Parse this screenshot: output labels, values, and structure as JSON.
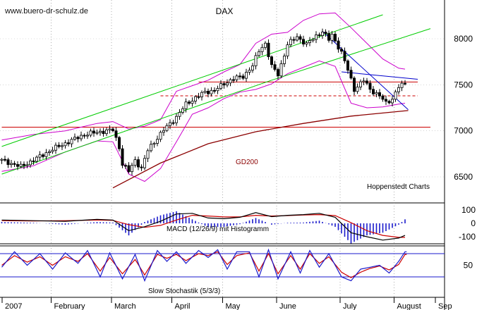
{
  "watermark": "www.buero-dr-schulz.de",
  "chart_data": [
    {
      "type": "candlestick",
      "title": "DAX",
      "source_label": "Hoppenstedt Charts",
      "ylim": [
        6300,
        8300
      ],
      "y_ticks": [
        6500,
        7000,
        7500,
        8000
      ],
      "x_labels": [
        "2007",
        "February",
        "March",
        "April",
        "May",
        "June",
        "July",
        "August",
        "Sep"
      ],
      "close_path": [
        [
          0,
          6680
        ],
        [
          6,
          6610
        ],
        [
          12,
          6720
        ],
        [
          16,
          6800
        ],
        [
          21,
          6880
        ],
        [
          26,
          6960
        ],
        [
          31,
          6990
        ],
        [
          35,
          7010
        ],
        [
          37,
          6820
        ],
        [
          38,
          6640
        ],
        [
          40,
          6560
        ],
        [
          42,
          6680
        ],
        [
          44,
          6590
        ],
        [
          46,
          6790
        ],
        [
          48,
          6880
        ],
        [
          51,
          7010
        ],
        [
          55,
          7150
        ],
        [
          58,
          7290
        ],
        [
          61,
          7360
        ],
        [
          64,
          7420
        ],
        [
          67,
          7440
        ],
        [
          70,
          7510
        ],
        [
          73,
          7570
        ],
        [
          76,
          7590
        ],
        [
          79,
          7710
        ],
        [
          81,
          7870
        ],
        [
          83,
          7950
        ],
        [
          85,
          7700
        ],
        [
          87,
          7610
        ],
        [
          90,
          7940
        ],
        [
          93,
          8020
        ],
        [
          96,
          7940
        ],
        [
          99,
          8030
        ],
        [
          101,
          8080
        ],
        [
          103,
          7990
        ],
        [
          104,
          8040
        ],
        [
          107,
          7850
        ],
        [
          109,
          7660
        ],
        [
          111,
          7450
        ],
        [
          114,
          7550
        ],
        [
          116,
          7450
        ],
        [
          119,
          7380
        ],
        [
          121,
          7300
        ],
        [
          123,
          7350
        ],
        [
          125,
          7480
        ],
        [
          127,
          7510
        ]
      ],
      "lines": [
        {
          "name": "GD200",
          "color": "#8b0000",
          "points": [
            [
              35,
              6380
            ],
            [
              50,
              6650
            ],
            [
              65,
              6860
            ],
            [
              80,
              6990
            ],
            [
              95,
              7080
            ],
            [
              110,
              7160
            ],
            [
              128,
              7220
            ]
          ]
        },
        {
          "name": "",
          "color": "#00cc00",
          "points": [
            [
              0,
              6830
            ],
            [
              120,
              8260
            ]
          ]
        },
        {
          "name": "",
          "color": "#00cc00",
          "points": [
            [
              0,
              6530
            ],
            [
              85,
              7550
            ],
            [
              135,
              8110
            ]
          ]
        },
        {
          "name": "",
          "color": "#0000cc",
          "points": [
            [
              101,
              8080
            ],
            [
              128,
              7230
            ]
          ]
        },
        {
          "name": "",
          "color": "#0000cc",
          "points": [
            [
              107,
              7640
            ],
            [
              131,
              7560
            ]
          ]
        }
      ],
      "horizontal_lines": [
        {
          "value": 7530,
          "color": "#cc0000",
          "style": "solid",
          "from": 62,
          "to": 131
        },
        {
          "value": 7380,
          "color": "#cc0000",
          "style": "dashed",
          "from": 50,
          "to": 131
        },
        {
          "value": 7040,
          "color": "#cc0000",
          "style": "solid",
          "from": 0,
          "to": 135
        }
      ],
      "bollinger": {
        "upper": [
          [
            0,
            6900
          ],
          [
            10,
            6960
          ],
          [
            20,
            7000
          ],
          [
            30,
            7080
          ],
          [
            35,
            7100
          ],
          [
            40,
            7020
          ],
          [
            45,
            7050
          ],
          [
            50,
            7120
          ],
          [
            55,
            7430
          ],
          [
            60,
            7490
          ],
          [
            65,
            7550
          ],
          [
            70,
            7640
          ],
          [
            75,
            7720
          ],
          [
            80,
            7950
          ],
          [
            85,
            8050
          ],
          [
            90,
            8070
          ],
          [
            95,
            8200
          ],
          [
            100,
            8270
          ],
          [
            105,
            8280
          ],
          [
            110,
            8120
          ],
          [
            115,
            7950
          ],
          [
            120,
            7780
          ],
          [
            125,
            7680
          ],
          [
            127,
            7670
          ]
        ],
        "lower": [
          [
            0,
            6560
          ],
          [
            10,
            6620
          ],
          [
            20,
            6770
          ],
          [
            30,
            6890
          ],
          [
            35,
            6880
          ],
          [
            40,
            6530
          ],
          [
            45,
            6450
          ],
          [
            50,
            6590
          ],
          [
            55,
            6880
          ],
          [
            60,
            7180
          ],
          [
            65,
            7250
          ],
          [
            70,
            7350
          ],
          [
            75,
            7420
          ],
          [
            80,
            7450
          ],
          [
            85,
            7510
          ],
          [
            90,
            7620
          ],
          [
            95,
            7690
          ],
          [
            100,
            7760
          ],
          [
            105,
            7700
          ],
          [
            110,
            7300
          ],
          [
            115,
            7250
          ],
          [
            120,
            7260
          ],
          [
            125,
            7290
          ],
          [
            127,
            7300
          ]
        ],
        "color": "#cc00cc"
      }
    },
    {
      "type": "macd",
      "label": "MACD (12/26/9) mit Histogramm",
      "ylim": [
        -150,
        150
      ],
      "y_ticks": [
        100,
        0,
        -100
      ],
      "macd": [
        [
          0,
          25
        ],
        [
          10,
          20
        ],
        [
          20,
          15
        ],
        [
          30,
          30
        ],
        [
          35,
          25
        ],
        [
          40,
          -55
        ],
        [
          45,
          -25
        ],
        [
          50,
          15
        ],
        [
          55,
          70
        ],
        [
          60,
          75
        ],
        [
          65,
          40
        ],
        [
          70,
          35
        ],
        [
          75,
          45
        ],
        [
          80,
          80
        ],
        [
          85,
          50
        ],
        [
          90,
          60
        ],
        [
          95,
          65
        ],
        [
          100,
          75
        ],
        [
          105,
          45
        ],
        [
          110,
          -70
        ],
        [
          115,
          -100
        ],
        [
          120,
          -125
        ],
        [
          125,
          -110
        ],
        [
          127,
          -90
        ]
      ],
      "signal": [
        [
          0,
          20
        ],
        [
          10,
          18
        ],
        [
          20,
          20
        ],
        [
          30,
          25
        ],
        [
          35,
          22
        ],
        [
          40,
          -10
        ],
        [
          45,
          -30
        ],
        [
          50,
          -15
        ],
        [
          55,
          25
        ],
        [
          60,
          60
        ],
        [
          65,
          55
        ],
        [
          70,
          48
        ],
        [
          75,
          48
        ],
        [
          80,
          60
        ],
        [
          85,
          55
        ],
        [
          90,
          58
        ],
        [
          95,
          62
        ],
        [
          100,
          65
        ],
        [
          105,
          58
        ],
        [
          110,
          5
        ],
        [
          115,
          -55
        ],
        [
          120,
          -90
        ],
        [
          125,
          -105
        ],
        [
          127,
          -105
        ]
      ]
    },
    {
      "type": "stochastic",
      "label": "Slow Stochastik (5/3/3)",
      "ylim": [
        0,
        100
      ],
      "y_ticks": [
        50
      ],
      "levels": [
        80,
        20
      ],
      "k": [
        [
          0,
          45
        ],
        [
          4,
          85
        ],
        [
          8,
          50
        ],
        [
          12,
          80
        ],
        [
          16,
          40
        ],
        [
          20,
          82
        ],
        [
          24,
          55
        ],
        [
          27,
          88
        ],
        [
          31,
          20
        ],
        [
          34,
          82
        ],
        [
          38,
          15
        ],
        [
          42,
          78
        ],
        [
          45,
          10
        ],
        [
          49,
          88
        ],
        [
          52,
          60
        ],
        [
          55,
          85
        ],
        [
          58,
          55
        ],
        [
          62,
          88
        ],
        [
          65,
          70
        ],
        [
          68,
          90
        ],
        [
          71,
          40
        ],
        [
          74,
          85
        ],
        [
          78,
          85
        ],
        [
          81,
          20
        ],
        [
          84,
          90
        ],
        [
          87,
          15
        ],
        [
          91,
          85
        ],
        [
          94,
          30
        ],
        [
          97,
          88
        ],
        [
          100,
          45
        ],
        [
          103,
          80
        ],
        [
          107,
          20
        ],
        [
          110,
          10
        ],
        [
          113,
          40
        ],
        [
          116,
          45
        ],
        [
          119,
          50
        ],
        [
          122,
          30
        ],
        [
          125,
          60
        ],
        [
          127,
          85
        ]
      ],
      "d": [
        [
          0,
          50
        ],
        [
          4,
          75
        ],
        [
          8,
          58
        ],
        [
          12,
          72
        ],
        [
          16,
          50
        ],
        [
          20,
          72
        ],
        [
          24,
          60
        ],
        [
          27,
          80
        ],
        [
          31,
          35
        ],
        [
          34,
          70
        ],
        [
          38,
          28
        ],
        [
          42,
          65
        ],
        [
          45,
          25
        ],
        [
          49,
          78
        ],
        [
          52,
          68
        ],
        [
          55,
          78
        ],
        [
          58,
          62
        ],
        [
          62,
          80
        ],
        [
          65,
          75
        ],
        [
          68,
          85
        ],
        [
          71,
          52
        ],
        [
          74,
          75
        ],
        [
          78,
          82
        ],
        [
          81,
          35
        ],
        [
          84,
          80
        ],
        [
          87,
          28
        ],
        [
          91,
          75
        ],
        [
          94,
          40
        ],
        [
          97,
          80
        ],
        [
          100,
          55
        ],
        [
          103,
          72
        ],
        [
          107,
          32
        ],
        [
          110,
          18
        ],
        [
          113,
          32
        ],
        [
          116,
          42
        ],
        [
          119,
          48
        ],
        [
          122,
          38
        ],
        [
          125,
          52
        ],
        [
          127,
          78
        ]
      ]
    }
  ]
}
